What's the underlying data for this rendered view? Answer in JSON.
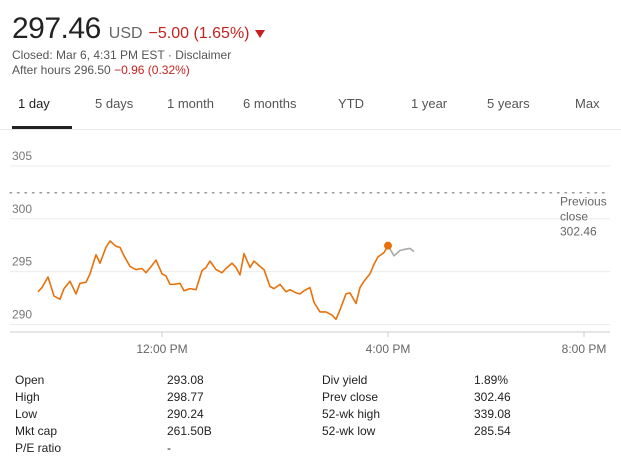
{
  "quote": {
    "price": "297.46",
    "currency": "USD",
    "change": "−5.00 (1.65%)",
    "closed_text": "Closed: Mar 6, 4:31 PM EST",
    "separator": "·",
    "disclaimer": "Disclaimer",
    "after_hours_label": "After hours 296.50",
    "after_hours_change": "−0.96 (0.32%)",
    "negative_color": "#c5221f"
  },
  "tabs": [
    {
      "label": "1 day",
      "active": true
    },
    {
      "label": "5 days",
      "active": false
    },
    {
      "label": "1 month",
      "active": false
    },
    {
      "label": "6 months",
      "active": false
    },
    {
      "label": "YTD",
      "active": false
    },
    {
      "label": "1 year",
      "active": false
    },
    {
      "label": "5 years",
      "active": false
    },
    {
      "label": "Max",
      "active": false
    }
  ],
  "chart_data": {
    "type": "line",
    "y_ticks": [
      "305",
      "300",
      "295",
      "290"
    ],
    "ylim": [
      289.3,
      306.5
    ],
    "x_ticks": [
      "12:00 PM",
      "4:00 PM",
      "8:00 PM"
    ],
    "previous_close": {
      "label_line1": "Previous",
      "label_line2": "close",
      "value": "302.46",
      "y": 302.46
    },
    "series": [
      {
        "color": "#e8710a",
        "x": [
          0,
          4,
          10,
          16,
          22,
          26,
          32,
          38,
          42,
          48,
          52,
          58,
          62,
          68,
          72,
          78,
          82,
          86,
          92,
          98,
          104,
          108,
          114,
          118,
          124,
          128,
          132,
          136,
          142,
          146,
          152,
          158,
          164,
          168,
          172,
          178,
          184,
          188,
          194,
          198,
          202,
          206,
          212,
          216,
          222,
          226,
          232,
          236,
          242,
          248,
          252,
          258,
          262,
          266,
          272,
          276,
          282,
          288,
          294,
          298,
          302,
          308,
          312,
          318,
          322,
          326,
          332,
          336,
          340,
          346,
          350
        ],
        "y": [
          293.1,
          293.5,
          294.5,
          292.7,
          292.4,
          293.4,
          294.1,
          292.9,
          293.9,
          294.0,
          294.8,
          296.6,
          295.8,
          297.3,
          297.9,
          297.4,
          297.3,
          296.5,
          295.5,
          295.2,
          295.3,
          294.9,
          295.6,
          296.1,
          294.8,
          294.6,
          293.8,
          293.8,
          293.9,
          293.2,
          293.4,
          293.3,
          295.1,
          295.4,
          296.0,
          295.2,
          294.9,
          295.3,
          295.8,
          295.4,
          294.7,
          296.7,
          295.4,
          296.0,
          295.5,
          295.2,
          293.6,
          293.4,
          293.8,
          293.1,
          293.3,
          293.0,
          292.9,
          293.2,
          293.5,
          292.1,
          291.2,
          291.2,
          290.9,
          290.5,
          291.4,
          292.9,
          293.0,
          292.0,
          293.5,
          294.1,
          294.8,
          295.7,
          296.4,
          296.8,
          297.46
        ],
        "last_point": {
          "x": 350,
          "y": 297.46
        }
      },
      {
        "color": "#aaaaaa",
        "x": [
          350,
          356,
          362,
          366,
          372,
          376
        ],
        "y": [
          297.46,
          296.5,
          297.0,
          297.1,
          297.2,
          296.9
        ]
      }
    ],
    "xlim": [
      0,
      600
    ],
    "x_tick_positions": [
      124,
      350,
      546
    ]
  },
  "stats": [
    {
      "label": "Open",
      "value": "293.08"
    },
    {
      "label": "High",
      "value": "298.77"
    },
    {
      "label": "Low",
      "value": "290.24"
    },
    {
      "label": "Mkt cap",
      "value": "261.50B"
    },
    {
      "label": "P/E ratio",
      "value": "-"
    },
    {
      "label": "Div yield",
      "value": "1.89%"
    },
    {
      "label": "Prev close",
      "value": "302.46"
    },
    {
      "label": "52-wk high",
      "value": "339.08"
    },
    {
      "label": "52-wk low",
      "value": "285.54"
    }
  ]
}
